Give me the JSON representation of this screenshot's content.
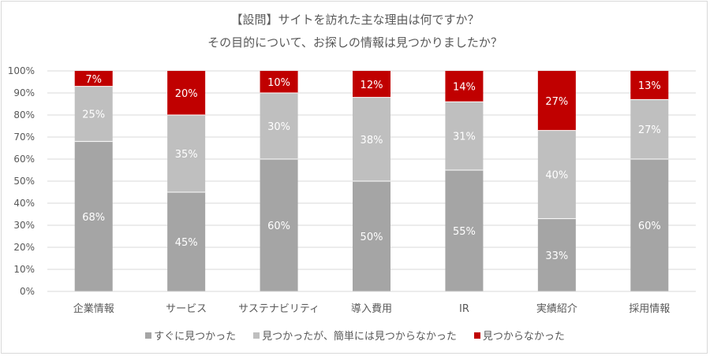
{
  "chart_data": {
    "type": "bar",
    "stacked": "percent",
    "title": [
      "【設問】サイトを訪れた主な理由は何ですか？",
      "その目的について、お探しの情報は見つかりましたか？"
    ],
    "categories": [
      "企業情報",
      "サービス",
      "サステナビリティ",
      "導入費用",
      "IR",
      "実績紹介",
      "採用情報"
    ],
    "series": [
      {
        "name": "すぐに見つかった",
        "color": "#a5a5a5",
        "values": [
          68,
          45,
          60,
          50,
          55,
          33,
          60
        ]
      },
      {
        "name": "見つかったが、簡単には見つからなかった",
        "color": "#bfbfbf",
        "values": [
          25,
          35,
          30,
          38,
          31,
          40,
          27
        ]
      },
      {
        "name": "見つからなかった",
        "color": "#c00000",
        "values": [
          7,
          20,
          10,
          12,
          14,
          27,
          13
        ]
      }
    ],
    "ylim": [
      0,
      100
    ],
    "yticks": [
      "0%",
      "10%",
      "20%",
      "30%",
      "40%",
      "50%",
      "60%",
      "70%",
      "80%",
      "90%",
      "100%"
    ],
    "grid": true,
    "legend": "bottom",
    "xlabel": "",
    "ylabel": ""
  }
}
